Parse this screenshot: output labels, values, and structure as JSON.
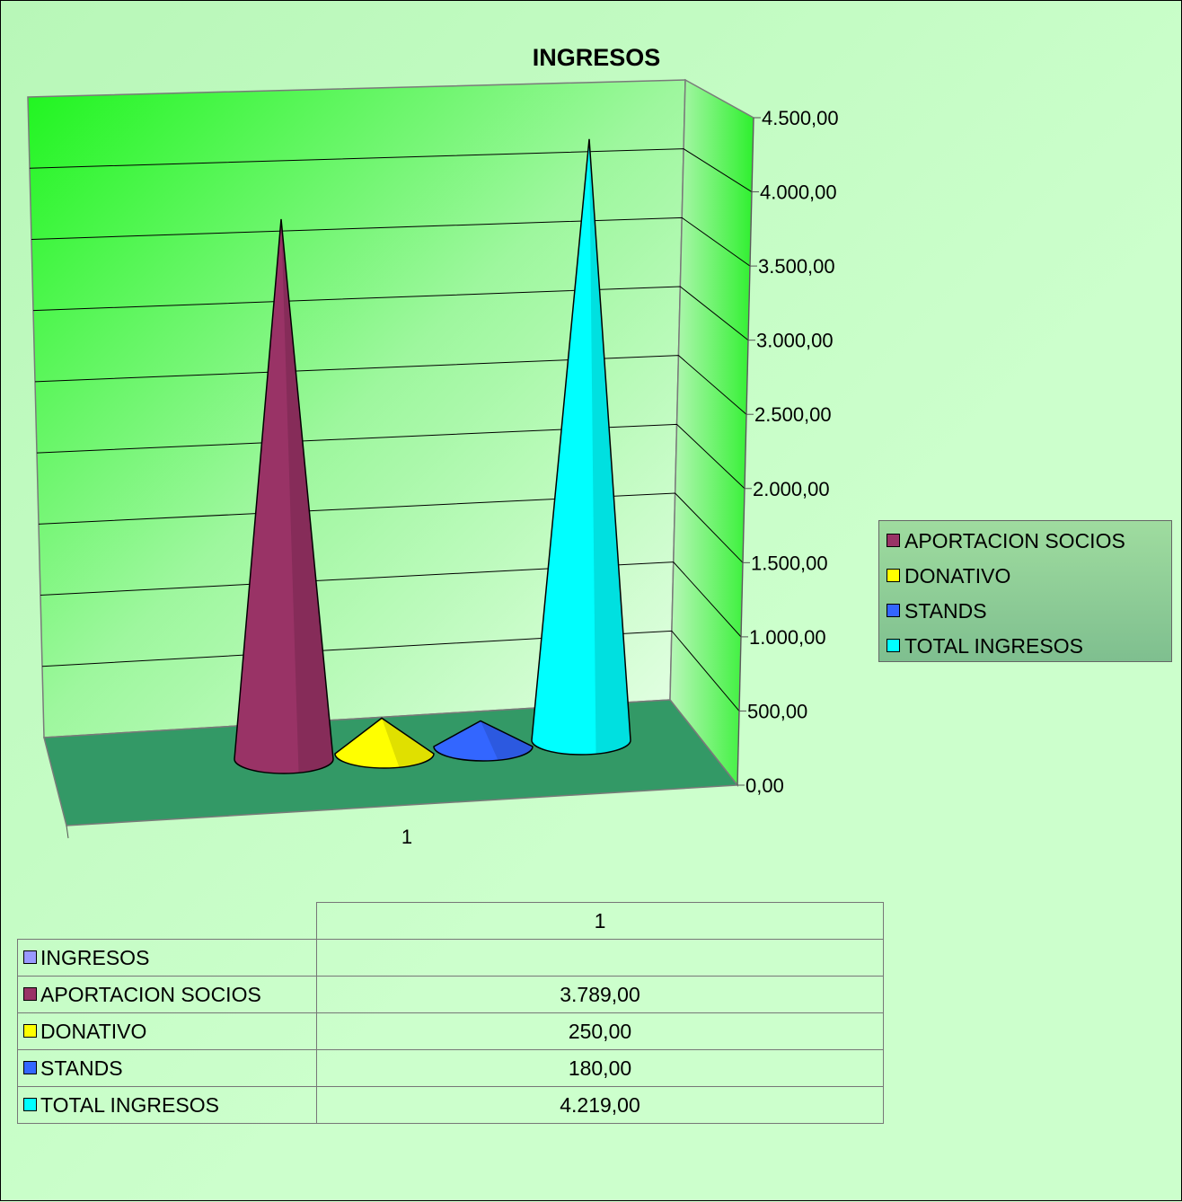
{
  "chart_data": {
    "type": "bar",
    "style": "3d-cone",
    "title": "INGRESOS",
    "categories": [
      "1"
    ],
    "series": [
      {
        "name": "APORTACION SOCIOS",
        "values": [
          3789
        ],
        "color": "#993366",
        "display": "3.789,00"
      },
      {
        "name": "DONATIVO",
        "values": [
          250
        ],
        "color": "#ffff00",
        "display": "250,00"
      },
      {
        "name": "STANDS",
        "values": [
          180
        ],
        "color": "#3366ff",
        "display": "180,00"
      },
      {
        "name": "TOTAL INGRESOS",
        "values": [
          4219
        ],
        "color": "#00ffff",
        "display": "4.219,00"
      }
    ],
    "ylim": [
      0,
      4500
    ],
    "yticks": [
      0,
      500,
      1000,
      1500,
      2000,
      2500,
      3000,
      3500,
      4000,
      4500
    ],
    "ytick_labels": [
      "0,00",
      "500,00",
      "1.000,00",
      "1.500,00",
      "2.000,00",
      "2.500,00",
      "3.000,00",
      "3.500,00",
      "4.000,00",
      "4.500,00"
    ],
    "grid": true,
    "legend_position": "right",
    "data_table": {
      "header": "1",
      "rows": [
        {
          "label": "INGRESOS",
          "value": "",
          "color": "#9999ff"
        },
        {
          "label": "APORTACION SOCIOS",
          "value": "3.789,00",
          "color": "#993366"
        },
        {
          "label": "DONATIVO",
          "value": "250,00",
          "color": "#ffff00"
        },
        {
          "label": "STANDS",
          "value": "180,00",
          "color": "#3366ff"
        },
        {
          "label": "TOTAL INGRESOS",
          "value": "4.219,00",
          "color": "#00ffff"
        }
      ]
    }
  }
}
